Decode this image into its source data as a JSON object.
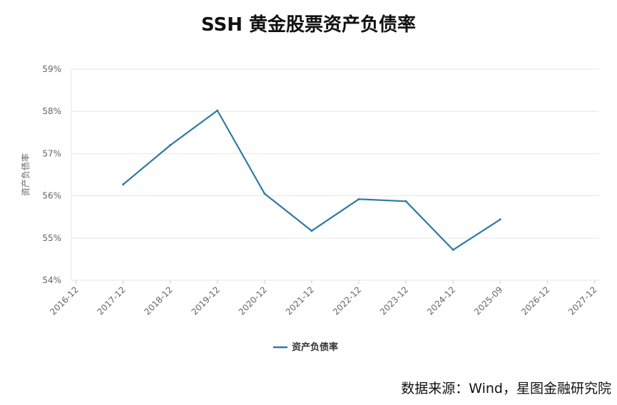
{
  "title": "SSH 黄金股票资产负债率",
  "source": "数据来源：Wind，星图金融研究院",
  "chart_data": {
    "type": "line",
    "title": "SSH 黄金股票资产负债率",
    "ylabel": "资产负债率",
    "xlabel": "",
    "categories": [
      "2016-12",
      "2017-12",
      "2018-12",
      "2019-12",
      "2020-12",
      "2021-12",
      "2022-12",
      "2023-12",
      "2024-12",
      "2025-09",
      "2026-12",
      "2027-12"
    ],
    "series": [
      {
        "name": "资产负债率",
        "color": "#2e7aa6",
        "values": [
          null,
          56.27,
          57.2,
          58.02,
          56.05,
          55.17,
          55.92,
          55.87,
          54.72,
          55.44,
          null,
          null
        ]
      }
    ],
    "ylim": [
      54,
      59
    ],
    "yticks": [
      "54%",
      "55%",
      "56%",
      "57%",
      "58%",
      "59%"
    ],
    "ytick_values": [
      54,
      55,
      56,
      57,
      58,
      59
    ],
    "grid": true,
    "legend": "bottom-center"
  }
}
